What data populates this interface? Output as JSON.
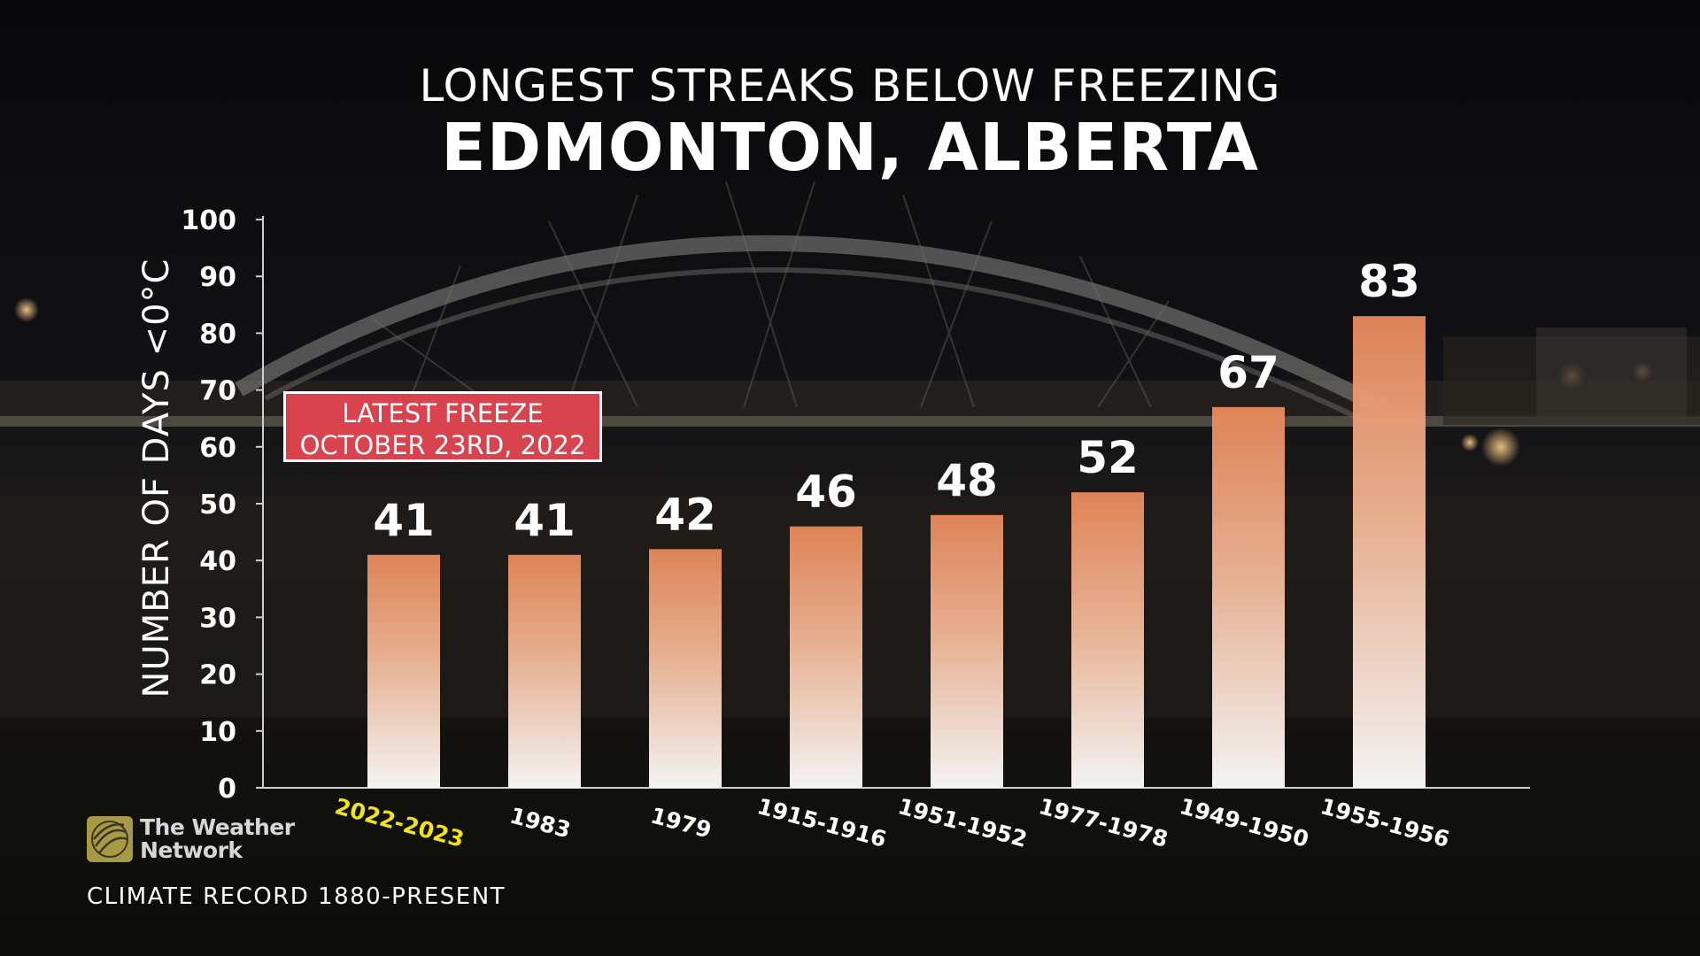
{
  "title": {
    "line1": "LONGEST STREAKS BELOW FREEZING",
    "line2": "EDMONTON, ALBERTA"
  },
  "annotation": {
    "line1": "LATEST FREEZE",
    "line2": "OCTOBER 23RD, 2022"
  },
  "logo": {
    "line1": "The Weather",
    "line2": "Network"
  },
  "footer": "CLIMATE RECORD 1880-PRESENT",
  "colors": {
    "bar_top": "#e8895a",
    "bar_bottom": "#ffffff",
    "highlight_label": "#f2e21a",
    "annotation_bg": "#d9434e"
  },
  "chart_data": {
    "type": "bar",
    "title": "LONGEST STREAKS BELOW FREEZING",
    "subtitle": "EDMONTON, ALBERTA",
    "xlabel": "",
    "ylabel": "NUMBER OF DAYS <0°C",
    "ylim": [
      0,
      100
    ],
    "yticks": [
      0,
      10,
      20,
      30,
      40,
      50,
      60,
      70,
      80,
      90,
      100
    ],
    "grid": false,
    "categories": [
      "2022-2023",
      "1983",
      "1979",
      "1915-1916",
      "1951-1952",
      "1977-1978",
      "1949-1950",
      "1955-1956"
    ],
    "values": [
      41,
      41,
      42,
      46,
      48,
      52,
      67,
      83
    ],
    "highlight_index": 0
  }
}
